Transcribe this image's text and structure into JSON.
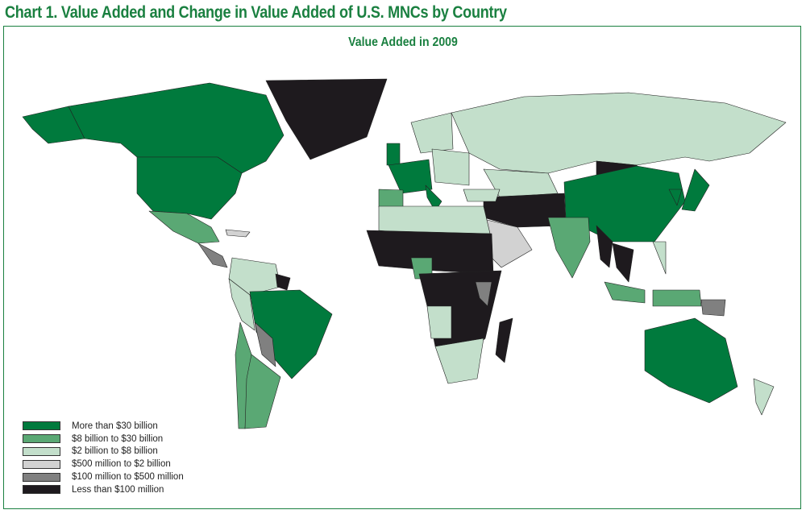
{
  "title": "Chart 1. Value Added and Change in Value Added of U.S. MNCs by Country",
  "subtitle": "Value Added in 2009",
  "legend": [
    {
      "label": "More than $30 billion",
      "color": "#007a3d"
    },
    {
      "label": "$8 billion to $30 billion",
      "color": "#5aa874"
    },
    {
      "label": "$2 billion to $8 billion",
      "color": "#c3dfcb"
    },
    {
      "label": "$500 million to $2 billion",
      "color": "#d2d2d2"
    },
    {
      "label": "$100 million to $500 million",
      "color": "#808080"
    },
    {
      "label": "Less than $100 million",
      "color": "#1e1a1e"
    }
  ],
  "colors": {
    "accent": "#1a8040"
  }
}
